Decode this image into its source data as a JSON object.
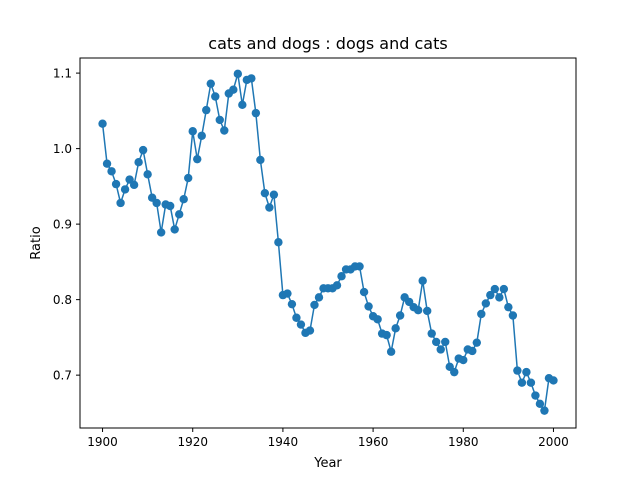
{
  "chart_data": {
    "type": "line",
    "title": "cats and dogs : dogs and cats",
    "xlabel": "Year",
    "ylabel": "Ratio",
    "xlim": [
      1895,
      2005
    ],
    "ylim": [
      0.63,
      1.12
    ],
    "xticks": [
      1900,
      1920,
      1940,
      1960,
      1980,
      2000
    ],
    "yticks": [
      0.7,
      0.8,
      0.9,
      1.0,
      1.1
    ],
    "ytick_labels": [
      "0.7",
      "0.8",
      "0.9",
      "1.0",
      "1.1"
    ],
    "grid": false,
    "legend": "none",
    "series": [
      {
        "color": "#1f77b4",
        "marker": "circle",
        "x": [
          1900,
          1901,
          1902,
          1903,
          1904,
          1905,
          1906,
          1907,
          1908,
          1909,
          1910,
          1911,
          1912,
          1913,
          1914,
          1915,
          1916,
          1917,
          1918,
          1919,
          1920,
          1921,
          1922,
          1923,
          1924,
          1925,
          1926,
          1927,
          1928,
          1929,
          1930,
          1931,
          1932,
          1933,
          1934,
          1935,
          1936,
          1937,
          1938,
          1939,
          1940,
          1941,
          1942,
          1943,
          1944,
          1945,
          1946,
          1947,
          1948,
          1949,
          1950,
          1951,
          1952,
          1953,
          1954,
          1955,
          1956,
          1957,
          1958,
          1959,
          1960,
          1961,
          1962,
          1963,
          1964,
          1965,
          1966,
          1967,
          1968,
          1969,
          1970,
          1971,
          1972,
          1973,
          1974,
          1975,
          1976,
          1977,
          1978,
          1979,
          1980,
          1981,
          1982,
          1983,
          1984,
          1985,
          1986,
          1987,
          1988,
          1989,
          1990,
          1991,
          1992,
          1993,
          1994,
          1995,
          1996,
          1997,
          1998,
          1999,
          2000
        ],
        "y": [
          1.033,
          0.98,
          0.97,
          0.953,
          0.928,
          0.946,
          0.959,
          0.952,
          0.982,
          0.998,
          0.966,
          0.935,
          0.928,
          0.889,
          0.926,
          0.924,
          0.893,
          0.913,
          0.933,
          0.961,
          1.023,
          0.986,
          1.017,
          1.051,
          1.086,
          1.069,
          1.038,
          1.024,
          1.073,
          1.078,
          1.099,
          1.058,
          1.091,
          1.093,
          1.047,
          0.985,
          0.941,
          0.922,
          0.939,
          0.876,
          0.806,
          0.808,
          0.794,
          0.776,
          0.767,
          0.756,
          0.759,
          0.793,
          0.803,
          0.815,
          0.815,
          0.815,
          0.819,
          0.831,
          0.84,
          0.84,
          0.844,
          0.844,
          0.81,
          0.791,
          0.778,
          0.774,
          0.755,
          0.753,
          0.731,
          0.762,
          0.779,
          0.803,
          0.797,
          0.79,
          0.786,
          0.825,
          0.785,
          0.755,
          0.744,
          0.734,
          0.744,
          0.711,
          0.704,
          0.722,
          0.72,
          0.734,
          0.732,
          0.743,
          0.781,
          0.795,
          0.806,
          0.814,
          0.803,
          0.814,
          0.79,
          0.779,
          0.706,
          0.69,
          0.704,
          0.69,
          0.673,
          0.662,
          0.653,
          0.696,
          0.693
        ]
      }
    ]
  }
}
